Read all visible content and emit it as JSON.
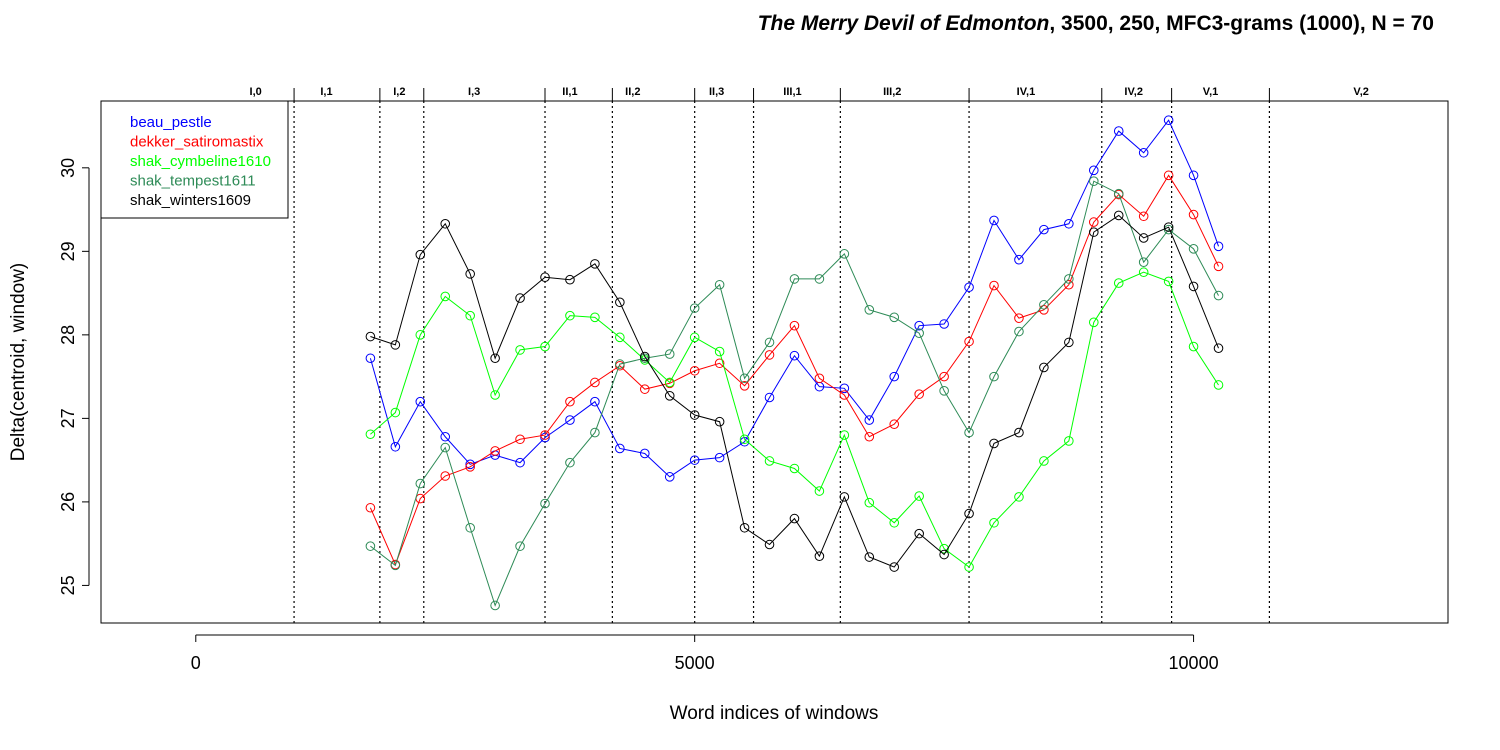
{
  "chart_data": {
    "type": "line",
    "title": {
      "italic_part": "The Merry Devil of Edmonton",
      "rest": ", 3500, 250, MFC3-grams (1000), N = 70"
    },
    "xlabel": "Word indices of windows",
    "ylabel": "Delta(centroid, window)",
    "xlim": [
      -950,
      12550
    ],
    "ylim": [
      24.55,
      30.8
    ],
    "x_ticks": [
      0,
      5000,
      10000
    ],
    "y_ticks": [
      25,
      26,
      27,
      28,
      29,
      30
    ],
    "grid": false,
    "legend_position": "top-left",
    "scene_boundaries": [
      985,
      1845,
      2285,
      3500,
      4175,
      5000,
      5590,
      6460,
      7750,
      9080,
      9780,
      10760
    ],
    "scene_labels": [
      {
        "label": "I,0",
        "x": 600
      },
      {
        "label": "I,1",
        "x": 1310
      },
      {
        "label": "I,2",
        "x": 2040
      },
      {
        "label": "I,3",
        "x": 2790
      },
      {
        "label": "II,1",
        "x": 3750
      },
      {
        "label": "II,2",
        "x": 4380
      },
      {
        "label": "II,3",
        "x": 5220
      },
      {
        "label": "III,1",
        "x": 5980
      },
      {
        "label": "III,2",
        "x": 6980
      },
      {
        "label": "IV,1",
        "x": 8320
      },
      {
        "label": "IV,2",
        "x": 9400
      },
      {
        "label": "V,1",
        "x": 10170
      },
      {
        "label": "V,2",
        "x": 11680
      }
    ],
    "x": [
      1750,
      2000,
      2250,
      2500,
      2750,
      3000,
      3250,
      3500,
      3750,
      4000,
      4250,
      4500,
      4750,
      5000,
      5250,
      5500,
      5750,
      6000,
      6250,
      6500,
      6750,
      7000,
      7250,
      7500,
      7750,
      8000,
      8250,
      8500,
      8750,
      9000,
      9250,
      9500,
      9750,
      10000,
      10250
    ],
    "series": [
      {
        "name": "beau_pestle",
        "color": "#0000ff",
        "values": [
          27.72,
          26.66,
          27.2,
          26.78,
          26.45,
          26.56,
          26.47,
          26.77,
          26.98,
          27.2,
          26.64,
          26.58,
          26.3,
          26.5,
          26.53,
          26.72,
          27.25,
          27.75,
          27.38,
          27.36,
          26.98,
          27.5,
          28.11,
          28.13,
          28.57,
          29.37,
          28.9,
          29.26,
          29.33,
          29.97,
          30.44,
          30.18,
          30.57,
          29.91,
          29.06
        ]
      },
      {
        "name": "dekker_satiromastix",
        "color": "#ff0000",
        "values": [
          25.93,
          25.25,
          26.04,
          26.31,
          26.42,
          26.61,
          26.75,
          26.8,
          27.2,
          27.43,
          27.63,
          27.35,
          27.42,
          27.57,
          27.66,
          27.39,
          27.76,
          28.11,
          27.48,
          27.28,
          26.78,
          26.93,
          27.29,
          27.5,
          27.92,
          28.59,
          28.2,
          28.3,
          28.6,
          29.35,
          29.68,
          29.42,
          29.91,
          29.44,
          28.82
        ]
      },
      {
        "name": "shak_cymbeline1610",
        "color": "#00ff00",
        "values": [
          26.81,
          27.07,
          28.0,
          28.46,
          28.23,
          27.28,
          27.82,
          27.86,
          28.23,
          28.21,
          27.97,
          27.7,
          27.43,
          27.97,
          27.8,
          26.75,
          26.49,
          26.4,
          26.13,
          26.8,
          25.99,
          25.75,
          26.07,
          25.44,
          25.22,
          25.75,
          26.06,
          26.49,
          26.73,
          28.15,
          28.62,
          28.75,
          28.64,
          27.86,
          27.4
        ]
      },
      {
        "name": "shak_tempest1611",
        "color": "#2e8b57",
        "values": [
          25.47,
          25.24,
          26.22,
          26.65,
          25.69,
          24.76,
          25.47,
          25.98,
          26.47,
          26.83,
          27.65,
          27.72,
          27.77,
          28.32,
          28.6,
          27.48,
          27.91,
          28.67,
          28.67,
          28.97,
          28.3,
          28.21,
          28.02,
          27.33,
          26.83,
          27.5,
          28.04,
          28.36,
          28.67,
          29.84,
          29.69,
          28.87,
          29.26,
          29.03,
          28.47
        ]
      },
      {
        "name": "shak_winters1609",
        "color": "#000000",
        "values": [
          27.98,
          27.88,
          28.96,
          29.33,
          28.73,
          27.72,
          28.44,
          28.69,
          28.66,
          28.85,
          28.39,
          27.74,
          27.27,
          27.04,
          26.96,
          25.69,
          25.49,
          25.8,
          25.35,
          26.06,
          25.34,
          25.22,
          25.62,
          25.37,
          25.86,
          26.7,
          26.83,
          27.61,
          27.91,
          29.23,
          29.43,
          29.16,
          29.29,
          28.58,
          27.84
        ]
      }
    ]
  }
}
